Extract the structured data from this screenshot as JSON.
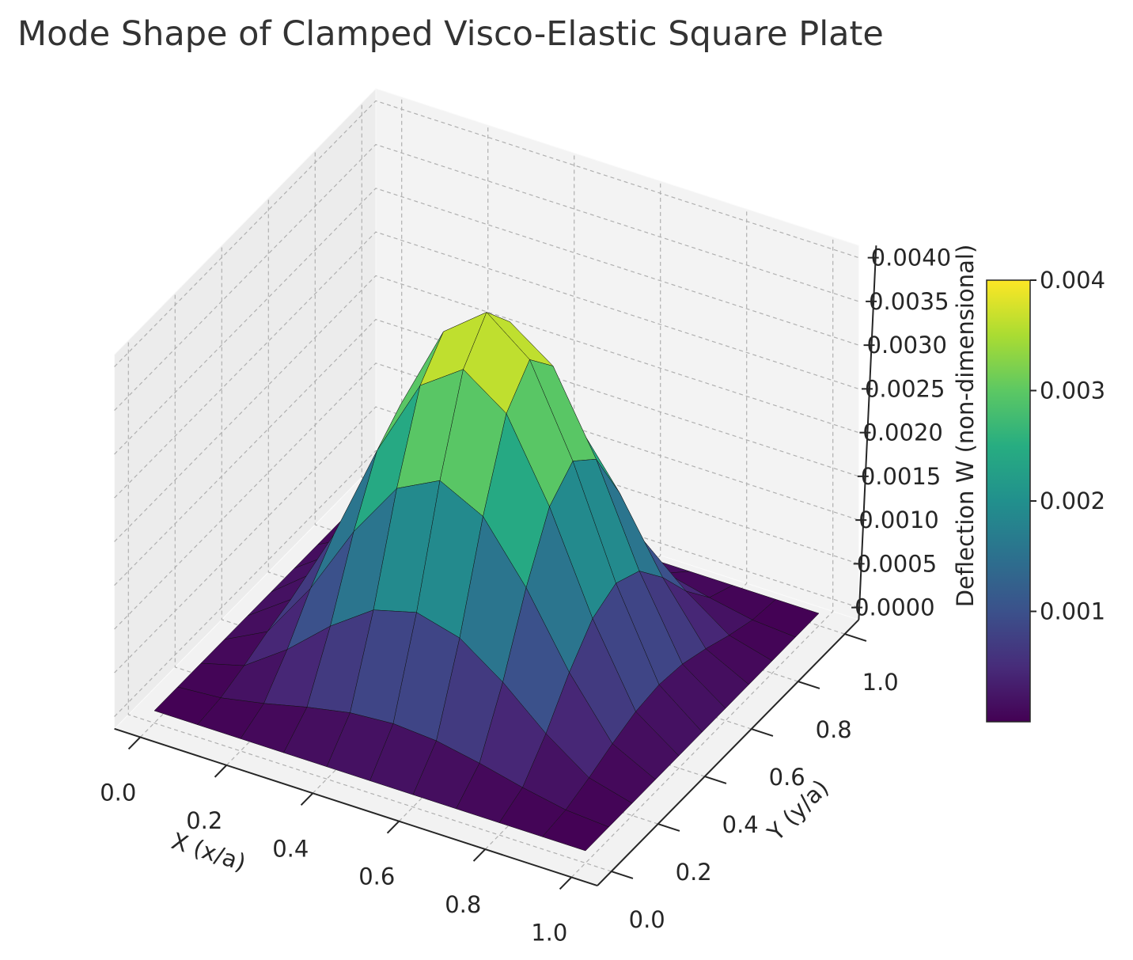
{
  "chart_data": {
    "type": "surface",
    "title": "Mode Shape of Clamped Visco-Elastic Square Plate",
    "xlabel": "X (x/a)",
    "ylabel": "Y (y/a)",
    "zlabel": "Deflection W (non-dimensional)",
    "colormap": "viridis",
    "x": [
      0,
      0.1,
      0.2,
      0.3,
      0.4,
      0.5,
      0.6,
      0.7,
      0.8,
      0.9,
      1
    ],
    "y": [
      0,
      0.1,
      0.2,
      0.3,
      0.4,
      0.5,
      0.6,
      0.7,
      0.8,
      0.9,
      1
    ],
    "z": [
      [
        0,
        0,
        0,
        0,
        0,
        0,
        0,
        0,
        0,
        0,
        0
      ],
      [
        0,
        3.6e-05,
        0.000132,
        0.00025,
        0.000346,
        0.000382,
        0.000346,
        0.00025,
        0.000132,
        3.6e-05,
        0
      ],
      [
        0,
        0.000132,
        0.000477,
        0.000905,
        0.00125,
        0.001382,
        0.00125,
        0.000905,
        0.000477,
        0.000132,
        0
      ],
      [
        0,
        0.00025,
        0.000905,
        0.001713,
        0.002368,
        0.002618,
        0.002368,
        0.001713,
        0.000905,
        0.00025,
        0
      ],
      [
        0,
        0.000346,
        0.00125,
        0.002368,
        0.003273,
        0.003618,
        0.003273,
        0.002368,
        0.00125,
        0.000346,
        0
      ],
      [
        0,
        0.000382,
        0.001382,
        0.002618,
        0.003618,
        0.004,
        0.003618,
        0.002618,
        0.001382,
        0.000382,
        0
      ],
      [
        0,
        0.000346,
        0.00125,
        0.002368,
        0.003273,
        0.003618,
        0.003273,
        0.002368,
        0.00125,
        0.000346,
        0
      ],
      [
        0,
        0.00025,
        0.000905,
        0.001713,
        0.002368,
        0.002618,
        0.002368,
        0.001713,
        0.000905,
        0.00025,
        0
      ],
      [
        0,
        0.000132,
        0.000477,
        0.000905,
        0.00125,
        0.001382,
        0.00125,
        0.000905,
        0.000477,
        0.000132,
        0
      ],
      [
        0,
        3.6e-05,
        0.000132,
        0.00025,
        0.000346,
        0.000382,
        0.000346,
        0.00025,
        0.000132,
        3.6e-05,
        0
      ],
      [
        0,
        0,
        0,
        0,
        0,
        0,
        0,
        0,
        0,
        0,
        0
      ]
    ],
    "xlim": [
      0,
      1
    ],
    "ylim": [
      0,
      1
    ],
    "zlim": [
      0,
      0.004
    ],
    "xticks": [
      {
        "value": 0,
        "label": "0.0"
      },
      0.2,
      0.4,
      0.6,
      0.8,
      {
        "value": 1,
        "label": "1.0"
      }
    ],
    "yticks": [
      {
        "value": 0,
        "label": "0.0"
      },
      0.2,
      0.4,
      0.6,
      0.8,
      {
        "value": 1,
        "label": "1.0"
      }
    ],
    "zticks": [
      {
        "value": 0,
        "label": "0.0000"
      },
      {
        "value": 0.0005,
        "label": "0.0005"
      },
      {
        "value": 0.001,
        "label": "0.0010"
      },
      {
        "value": 0.0015,
        "label": "0.0015"
      },
      {
        "value": 0.002,
        "label": "0.0020"
      },
      {
        "value": 0.0025,
        "label": "0.0025"
      },
      {
        "value": 0.003,
        "label": "0.0030"
      },
      {
        "value": 0.0035,
        "label": "0.0035"
      },
      {
        "value": 0.004,
        "label": "0.0040"
      }
    ],
    "clim": [
      0,
      0.004
    ],
    "cticks": [
      0.001,
      0.002,
      0.003,
      0.004
    ],
    "grid": true
  }
}
